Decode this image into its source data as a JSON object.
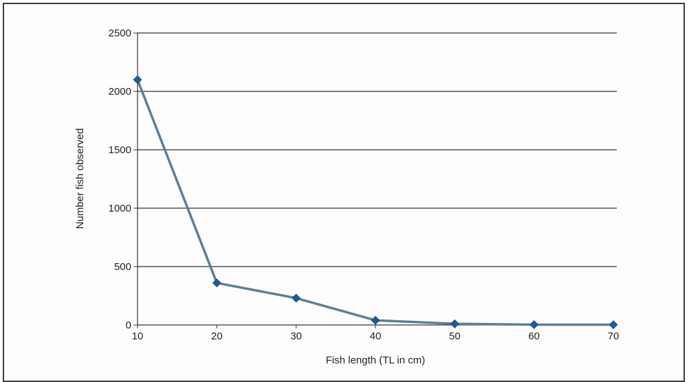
{
  "chart_data": {
    "type": "line",
    "title": "",
    "xlabel": "Fish length (TL in cm)",
    "ylabel": "Number fish observed",
    "x": [
      10,
      20,
      30,
      40,
      50,
      60,
      70
    ],
    "series": [
      {
        "values": [
          2100,
          360,
          230,
          40,
          10,
          3,
          2
        ],
        "color": "#5b7f98",
        "marker_color": "#1f5a99",
        "marker": "diamond"
      }
    ],
    "xlim": [
      10,
      70
    ],
    "ylim": [
      0,
      2500
    ],
    "xticks": [
      "10",
      "20",
      "30",
      "40",
      "50",
      "60",
      "70"
    ],
    "yticks": [
      "0",
      "500",
      "1000",
      "1500",
      "2000",
      "2500"
    ],
    "ytick_values": [
      0,
      500,
      1000,
      1500,
      2000,
      2500
    ],
    "grid": "horizontal",
    "legend": "none",
    "gridline_color": "#000000",
    "axis_color": "#333333"
  }
}
